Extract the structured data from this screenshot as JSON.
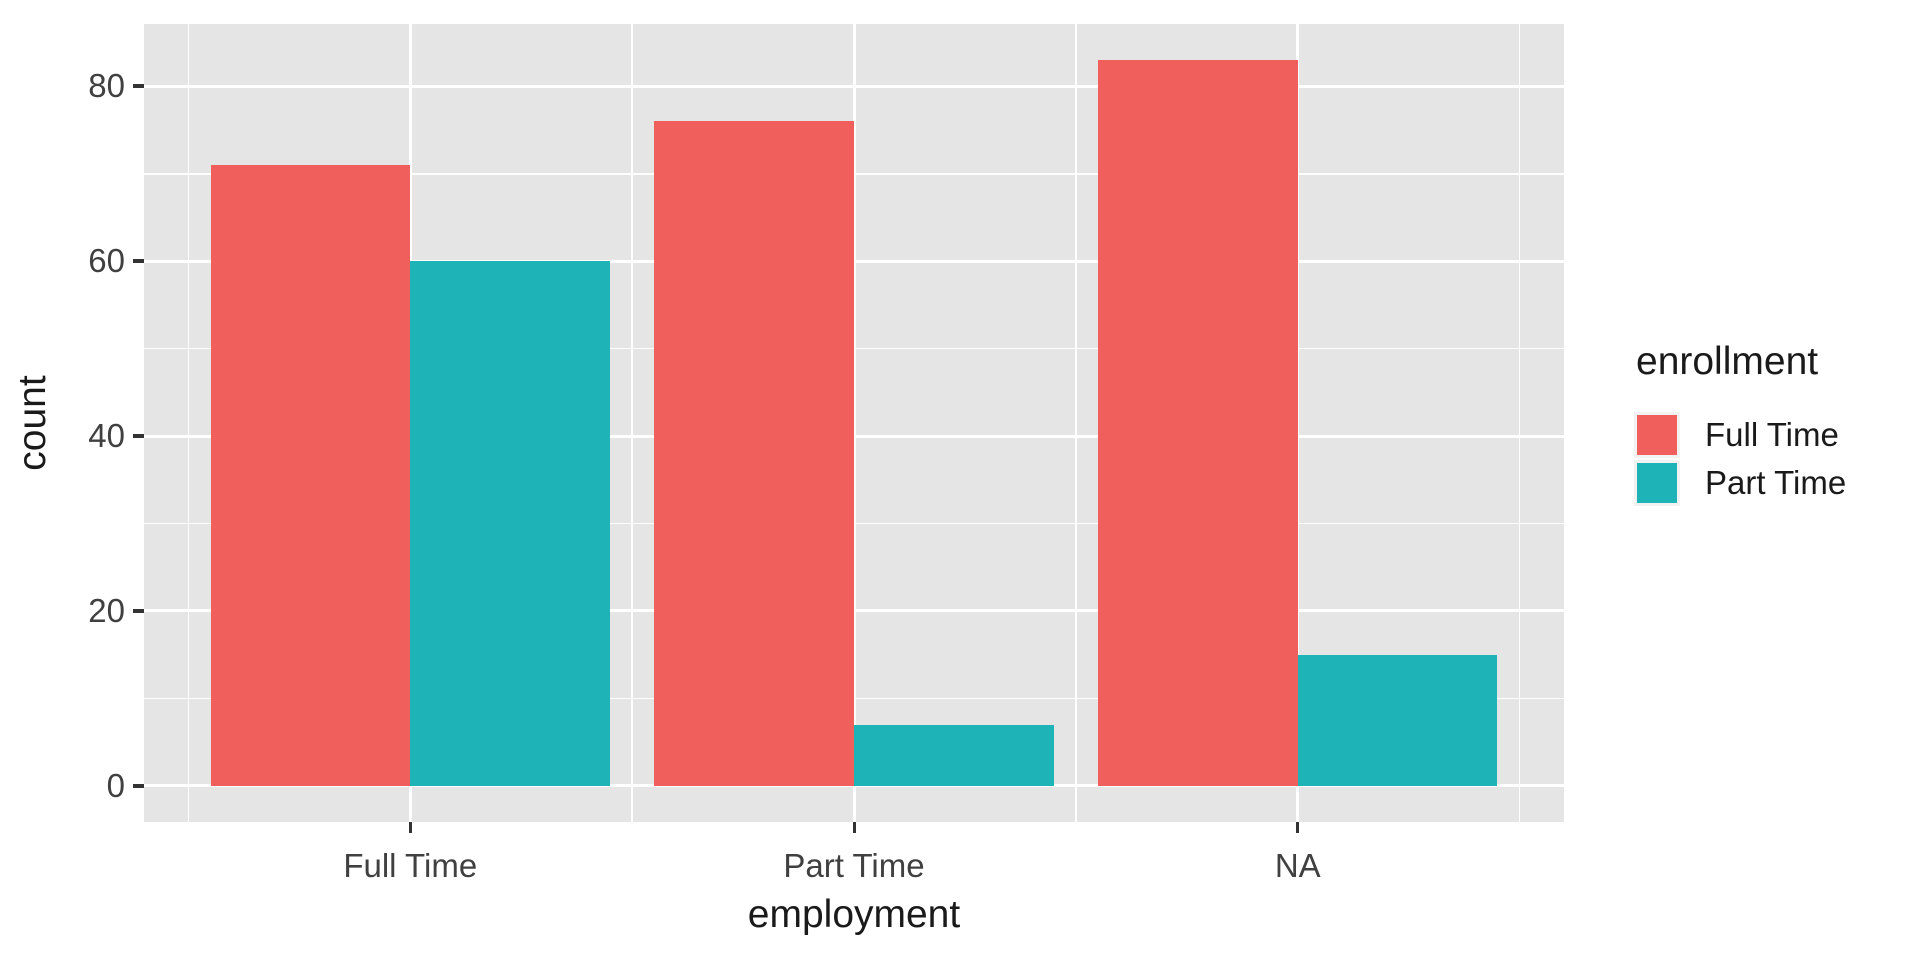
{
  "figure": {
    "background": "#FFFFFF",
    "panel_background": "#E5E5E5",
    "grid_color": "#FFFFFF",
    "tick_color": "#333333",
    "axis_text_color": "#404040",
    "title_text_color": "#1A1A1A",
    "legend_key_background": "#F2F2F2"
  },
  "chart_data": {
    "type": "bar",
    "title": "",
    "xlabel": "employment",
    "ylabel": "count",
    "categories": [
      "Full Time",
      "Part Time",
      "NA"
    ],
    "series": [
      {
        "name": "Full Time",
        "color": "#F15F5C",
        "values": [
          71,
          76,
          83
        ]
      },
      {
        "name": "Part Time",
        "color": "#1EB3B6",
        "values": [
          60,
          7,
          15
        ]
      }
    ],
    "y_ticks": [
      0,
      20,
      40,
      60,
      80
    ],
    "y_minor_ticks": [
      10,
      30,
      50,
      70
    ],
    "ylim": [
      -4.15,
      87.15
    ],
    "grid": "on",
    "bar_mode": "dodge",
    "legend_title": "enrollment",
    "legend_position": "right"
  }
}
